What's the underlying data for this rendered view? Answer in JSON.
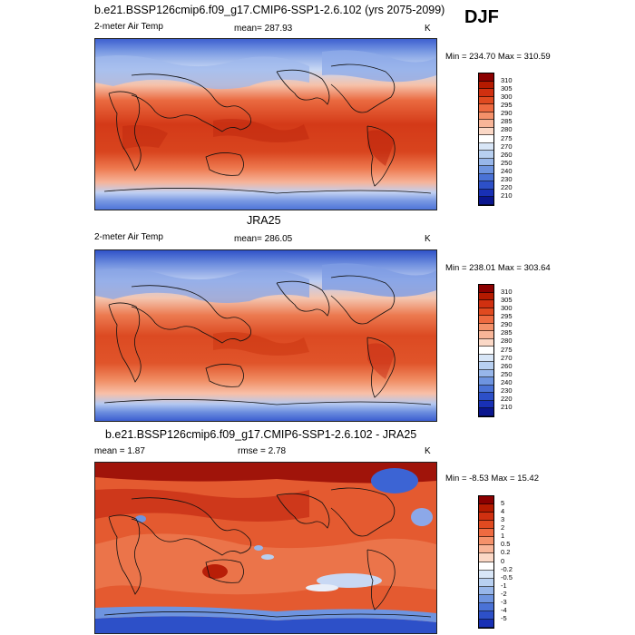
{
  "season": "DJF",
  "panels": [
    {
      "title": "b.e21.BSSP126cmip6.f09_g17.CMIP6-SSP1-2.6.102 (yrs 2075-2099)",
      "left_label": "2-meter Air Temp",
      "center_label": "mean= 287.93",
      "right_label": "K",
      "minmax": "Min = 234.70 Max = 310.59",
      "colorbar": {
        "colors": [
          "#8b0000",
          "#b51a00",
          "#d03010",
          "#e04a20",
          "#ee6a40",
          "#f4916a",
          "#f8b598",
          "#fbd8c6",
          "#ffffff",
          "#d8e6f7",
          "#b8d0f1",
          "#97b6ea",
          "#6e94e0",
          "#4a72d6",
          "#2d50c8",
          "#1830b5",
          "#0a168f"
        ],
        "ticks": [
          "310",
          "305",
          "300",
          "295",
          "290",
          "285",
          "280",
          "275",
          "270",
          "260",
          "250",
          "240",
          "230",
          "220",
          "210"
        ]
      }
    },
    {
      "title": "JRA25",
      "left_label": "2-meter Air Temp",
      "center_label": "mean= 286.05",
      "right_label": "K",
      "minmax": "Min = 238.01 Max = 303.64",
      "colorbar": {
        "colors": [
          "#8b0000",
          "#b51a00",
          "#d03010",
          "#e04a20",
          "#ee6a40",
          "#f4916a",
          "#f8b598",
          "#fbd8c6",
          "#ffffff",
          "#d8e6f7",
          "#b8d0f1",
          "#97b6ea",
          "#6e94e0",
          "#4a72d6",
          "#2d50c8",
          "#1830b5",
          "#0a168f"
        ],
        "ticks": [
          "310",
          "305",
          "300",
          "295",
          "290",
          "285",
          "280",
          "275",
          "270",
          "260",
          "250",
          "240",
          "230",
          "220",
          "210"
        ]
      }
    },
    {
      "title": "b.e21.BSSP126cmip6.f09_g17.CMIP6-SSP1-2.6.102 - JRA25",
      "left_label": "mean =   1.87",
      "center_label": "rmse =   2.78",
      "right_label": "K",
      "minmax": "Min = -8.53 Max = 15.42",
      "colorbar": {
        "colors": [
          "#8b0000",
          "#b51a00",
          "#d03010",
          "#e04a20",
          "#ee6a40",
          "#f4916a",
          "#f8b598",
          "#fbd8c6",
          "#ffffff",
          "#d8e6f7",
          "#b8d0f1",
          "#97b6ea",
          "#6e94e0",
          "#4a72d6",
          "#2d50c8",
          "#1830b5"
        ],
        "ticks": [
          "5",
          "4",
          "3",
          "2",
          "1",
          "0.5",
          "0.2",
          "0",
          "-0.2",
          "-0.5",
          "-1",
          "-2",
          "-3",
          "-4",
          "-5"
        ]
      }
    }
  ]
}
